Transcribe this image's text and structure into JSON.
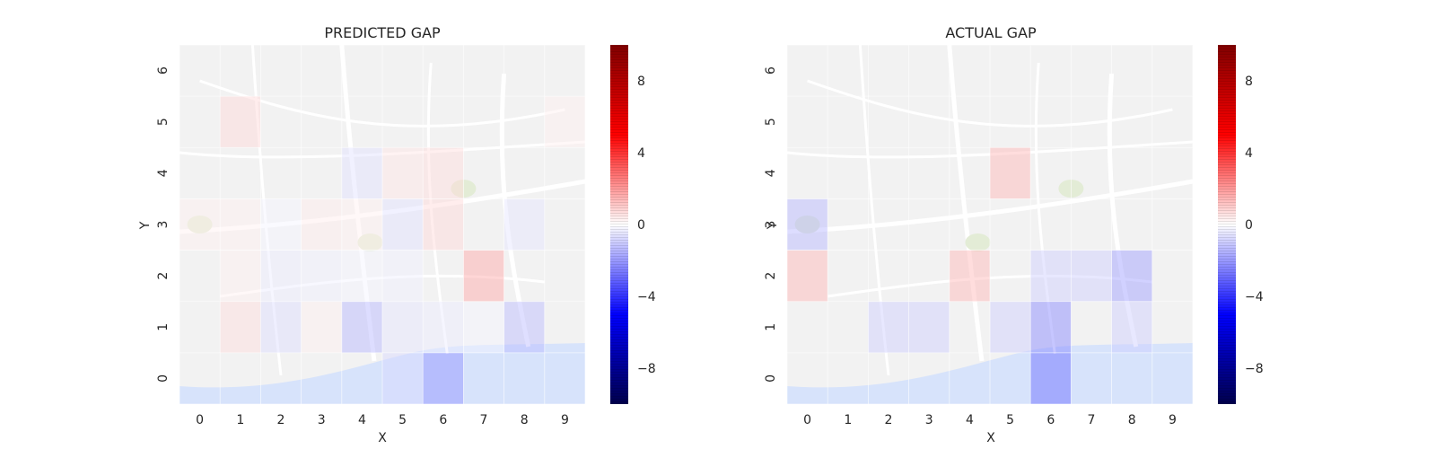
{
  "chart_data": [
    {
      "type": "heatmap",
      "title": "PREDICTED GAP",
      "xlabel": "X",
      "ylabel": "Y",
      "x": [
        0,
        1,
        2,
        3,
        4,
        5,
        6,
        7,
        8,
        9
      ],
      "y": [
        0,
        1,
        2,
        3,
        4,
        5,
        6
      ],
      "grid": true,
      "background": "city street map (Porto) under semi-transparent grid cells",
      "cells": [
        {
          "x": 1,
          "y": 5,
          "value": 0.8
        },
        {
          "x": 9,
          "y": 5,
          "value": 0.3
        },
        {
          "x": 4,
          "y": 4,
          "value": -0.6
        },
        {
          "x": 5,
          "y": 4,
          "value": 0.5
        },
        {
          "x": 6,
          "y": 4,
          "value": 0.7
        },
        {
          "x": 0,
          "y": 3,
          "value": 0.3
        },
        {
          "x": 1,
          "y": 3,
          "value": 0.3
        },
        {
          "x": 2,
          "y": 3,
          "value": -0.2
        },
        {
          "x": 3,
          "y": 3,
          "value": 0.4
        },
        {
          "x": 4,
          "y": 3,
          "value": 0.3
        },
        {
          "x": 5,
          "y": 3,
          "value": -0.6
        },
        {
          "x": 6,
          "y": 3,
          "value": 0.8
        },
        {
          "x": 8,
          "y": 3,
          "value": -0.5
        },
        {
          "x": 1,
          "y": 2,
          "value": 0.3
        },
        {
          "x": 2,
          "y": 2,
          "value": -0.4
        },
        {
          "x": 3,
          "y": 2,
          "value": -0.3
        },
        {
          "x": 4,
          "y": 2,
          "value": -0.2
        },
        {
          "x": 5,
          "y": 2,
          "value": -0.3
        },
        {
          "x": 7,
          "y": 2,
          "value": 1.8
        },
        {
          "x": 1,
          "y": 1,
          "value": 0.7
        },
        {
          "x": 2,
          "y": 1,
          "value": -0.7
        },
        {
          "x": 3,
          "y": 1,
          "value": 0.3
        },
        {
          "x": 4,
          "y": 1,
          "value": -1.5
        },
        {
          "x": 5,
          "y": 1,
          "value": -0.5
        },
        {
          "x": 6,
          "y": 1,
          "value": -0.4
        },
        {
          "x": 7,
          "y": 1,
          "value": -0.2
        },
        {
          "x": 8,
          "y": 1,
          "value": -1.4
        },
        {
          "x": 5,
          "y": 0,
          "value": -0.8
        },
        {
          "x": 6,
          "y": 0,
          "value": -2.2
        }
      ],
      "colorbar": {
        "ticks": [
          -8,
          -4,
          0,
          4,
          8
        ],
        "tick_labels": [
          "−8",
          "−4",
          "0",
          "4",
          "8"
        ],
        "range": [
          -10,
          10
        ],
        "colormap": "seismic"
      }
    },
    {
      "type": "heatmap",
      "title": "ACTUAL GAP",
      "xlabel": "X",
      "ylabel": "Y",
      "x": [
        0,
        1,
        2,
        3,
        4,
        5,
        6,
        7,
        8,
        9
      ],
      "y": [
        0,
        1,
        2,
        3,
        4,
        5,
        6
      ],
      "grid": true,
      "background": "city street map (Porto) under semi-transparent grid cells",
      "cells": [
        {
          "x": 5,
          "y": 4,
          "value": 1.5
        },
        {
          "x": 0,
          "y": 3,
          "value": -1.5
        },
        {
          "x": 0,
          "y": 2,
          "value": 1.5
        },
        {
          "x": 4,
          "y": 2,
          "value": 1.5
        },
        {
          "x": 6,
          "y": 2,
          "value": -1.0
        },
        {
          "x": 7,
          "y": 2,
          "value": -1.0
        },
        {
          "x": 8,
          "y": 2,
          "value": -2.0
        },
        {
          "x": 2,
          "y": 1,
          "value": -1.0
        },
        {
          "x": 3,
          "y": 1,
          "value": -1.0
        },
        {
          "x": 5,
          "y": 1,
          "value": -1.0
        },
        {
          "x": 6,
          "y": 1,
          "value": -2.5
        },
        {
          "x": 8,
          "y": 1,
          "value": -1.0
        },
        {
          "x": 6,
          "y": 0,
          "value": -3.0
        }
      ],
      "colorbar": {
        "ticks": [
          -8,
          -4,
          0,
          4,
          8
        ],
        "tick_labels": [
          "−8",
          "−4",
          "0",
          "4",
          "8"
        ],
        "range": [
          -10,
          10
        ],
        "colormap": "seismic"
      }
    }
  ],
  "colors": {
    "map_base": "#f2f2f2",
    "map_water": "#d7e3fb",
    "map_roads": "#ffffff",
    "map_labels": "#9a9a9a",
    "colormap_low": "#00004c",
    "colormap_mid": "#ffffff",
    "colormap_high": "#800000",
    "text": "#262626"
  }
}
